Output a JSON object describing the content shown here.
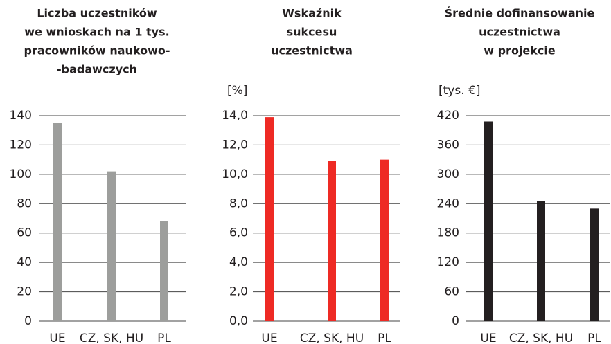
{
  "chart_data": [
    {
      "type": "bar",
      "title": [
        "Liczba uczestników",
        "we wnioskach na 1 tys.",
        "pracowników naukowo-",
        "-badawczych"
      ],
      "categories": [
        "UE",
        "CZ, SK, HU",
        "PL"
      ],
      "values": [
        135,
        102,
        68
      ],
      "color": "#9d9e9c",
      "ylim": [
        0,
        140
      ],
      "yticks": [
        0,
        20,
        40,
        60,
        80,
        100,
        120,
        140
      ],
      "grid": true
    },
    {
      "type": "bar",
      "title": [
        "Wskaźnik",
        "sukcesu",
        "uczestnictwa"
      ],
      "ylabel": "[%]",
      "categories": [
        "UE",
        "CZ, SK, HU",
        "PL"
      ],
      "values": [
        13.9,
        10.9,
        11.0
      ],
      "color": "#ee2a24",
      "ylim": [
        0,
        14
      ],
      "yticks": [
        {
          "value": 0,
          "label": "0,0"
        },
        {
          "value": 2,
          "label": "2,0"
        },
        {
          "value": 4,
          "label": "4,0"
        },
        {
          "value": 6,
          "label": "6,0"
        },
        {
          "value": 8,
          "label": "8,0"
        },
        {
          "value": 10,
          "label": "10,0"
        },
        {
          "value": 12,
          "label": "12,0"
        },
        {
          "value": 14,
          "label": "14,0"
        }
      ],
      "grid": true
    },
    {
      "type": "bar",
      "title": [
        "Średnie dofinansowanie",
        "uczestnictwa",
        "w projekcie"
      ],
      "ylabel": "[tys. €]",
      "categories": [
        "UE",
        "CZ, SK, HU",
        "PL"
      ],
      "values": [
        408,
        245,
        230
      ],
      "color": "#231f20",
      "ylim": [
        0,
        420
      ],
      "yticks": [
        0,
        60,
        120,
        180,
        240,
        300,
        360,
        420
      ],
      "grid": true
    }
  ]
}
